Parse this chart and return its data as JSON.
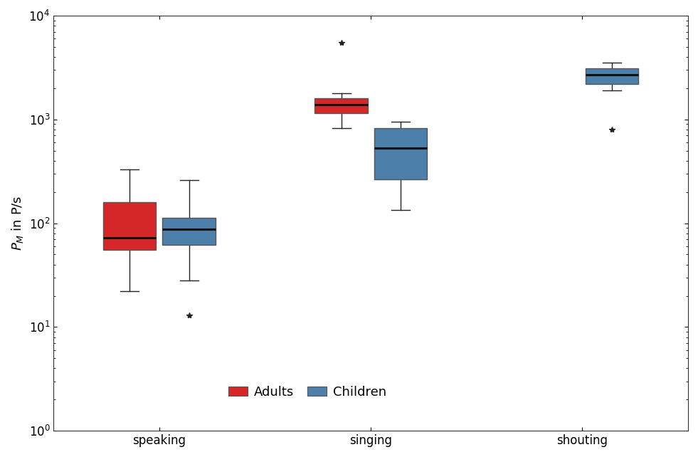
{
  "title": "",
  "ylabel": "$P_M$ in P/s",
  "categories": [
    "speaking",
    "singing",
    "shouting"
  ],
  "ylim": [
    1,
    10000
  ],
  "adult_color": "#d62728",
  "children_color": "#4c7faa",
  "median_color": "#111111",
  "whisker_color": "#222222",
  "flier_color": "#222222",
  "boxes": {
    "speaking": {
      "adults": {
        "q1": 55,
        "median": 72,
        "q3": 160,
        "whislo": 22,
        "whishi": 330,
        "fliers": []
      },
      "children": {
        "q1": 62,
        "median": 88,
        "q3": 112,
        "whislo": 28,
        "whishi": 260,
        "fliers": [
          13
        ]
      }
    },
    "singing": {
      "adults": {
        "q1": 1150,
        "median": 1380,
        "q3": 1600,
        "whislo": 820,
        "whishi": 1800,
        "fliers": [
          5500
        ]
      },
      "children": {
        "q1": 265,
        "median": 530,
        "q3": 820,
        "whislo": 135,
        "whishi": 950,
        "fliers": []
      }
    },
    "shouting": {
      "adults": null,
      "children": {
        "q1": 2200,
        "median": 2700,
        "q3": 3100,
        "whislo": 1900,
        "whishi": 3500,
        "fliers": [
          800
        ]
      }
    }
  },
  "legend_labels": [
    "Adults",
    "Children"
  ],
  "box_width": 0.25,
  "offsets": [
    -0.14,
    0.14
  ],
  "figsize": [
    9.81,
    6.42
  ],
  "dpi": 100
}
